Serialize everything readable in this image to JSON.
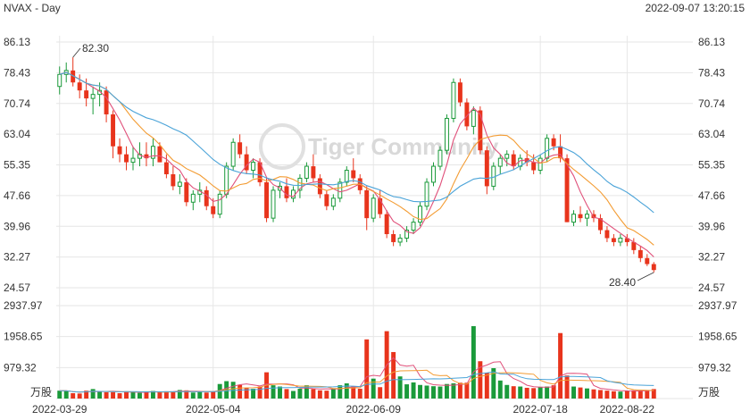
{
  "header": {
    "title": "NVAX - Day",
    "timestamp": "2022-09-07 13:20:15"
  },
  "watermark": "Tiger Community",
  "colors": {
    "up": "#1a9a3a",
    "down": "#e8341c",
    "ma5": "#e0507a",
    "ma10": "#f39c33",
    "ma20": "#4aa3d8",
    "grid": "#e6e6e6"
  },
  "chart_data": [
    {
      "type": "candlestick",
      "title": "",
      "y_ticks": [
        "86.13",
        "78.43",
        "70.74",
        "63.04",
        "55.35",
        "47.66",
        "39.96",
        "32.27",
        "24.57"
      ],
      "ylim": [
        24.57,
        86.13
      ],
      "x_tick_labels": [
        "2022-03-29",
        "2022-05-04",
        "2022-06-09",
        "2022-07-18",
        "2022-08-22"
      ],
      "annotations": {
        "high": "82.30",
        "low": "28.40"
      },
      "series_names": [
        "MA5",
        "MA10",
        "MA20"
      ],
      "candles": [
        [
          75,
          80,
          73,
          78
        ],
        [
          78,
          81,
          76,
          79
        ],
        [
          79,
          82.3,
          75,
          76
        ],
        [
          76,
          78,
          72,
          74
        ],
        [
          74,
          77,
          70,
          72
        ],
        [
          72,
          75,
          68,
          73
        ],
        [
          73,
          76,
          70,
          74
        ],
        [
          74,
          75,
          66,
          68
        ],
        [
          68,
          69,
          57,
          60
        ],
        [
          60,
          62,
          56,
          58
        ],
        [
          58,
          60,
          54,
          56
        ],
        [
          56,
          60,
          54,
          57
        ],
        [
          57,
          61,
          55,
          58
        ],
        [
          58,
          61,
          55,
          57
        ],
        [
          57,
          62,
          55,
          60
        ],
        [
          60,
          61,
          56,
          56
        ],
        [
          56,
          58,
          52,
          53
        ],
        [
          53,
          55,
          49,
          50
        ],
        [
          50,
          53,
          48,
          51
        ],
        [
          51,
          52,
          45,
          46
        ],
        [
          46,
          49,
          44,
          48
        ],
        [
          48,
          51,
          46,
          49
        ],
        [
          49,
          50,
          44,
          45
        ],
        [
          45,
          47,
          42,
          43
        ],
        [
          43,
          49,
          42,
          48
        ],
        [
          48,
          56,
          47,
          55
        ],
        [
          55,
          62,
          54,
          61
        ],
        [
          61,
          63,
          57,
          58
        ],
        [
          58,
          60,
          53,
          54
        ],
        [
          54,
          57,
          52,
          56
        ],
        [
          56,
          57,
          50,
          51
        ],
        [
          51,
          52,
          41,
          42
        ],
        [
          42,
          50,
          41,
          49
        ],
        [
          49,
          51,
          47,
          50
        ],
        [
          50,
          52,
          46,
          47
        ],
        [
          47,
          50,
          46,
          49
        ],
        [
          49,
          53,
          47,
          52
        ],
        [
          52,
          56,
          51,
          55
        ],
        [
          55,
          58,
          51,
          52
        ],
        [
          52,
          53,
          47,
          48
        ],
        [
          48,
          49,
          44,
          45
        ],
        [
          45,
          48,
          44,
          47
        ],
        [
          47,
          52,
          46,
          51
        ],
        [
          51,
          55,
          50,
          54
        ],
        [
          54,
          57,
          51,
          52
        ],
        [
          52,
          53,
          48,
          49
        ],
        [
          49,
          50,
          39,
          42
        ],
        [
          42,
          48,
          41,
          47
        ],
        [
          47,
          49,
          42,
          43
        ],
        [
          43,
          44,
          37,
          38
        ],
        [
          38,
          39,
          35,
          36
        ],
        [
          36,
          38,
          35,
          37
        ],
        [
          37,
          40,
          36,
          39
        ],
        [
          39,
          42,
          38,
          41
        ],
        [
          41,
          46,
          40,
          45
        ],
        [
          45,
          52,
          44,
          51
        ],
        [
          51,
          56,
          50,
          55
        ],
        [
          55,
          60,
          54,
          59
        ],
        [
          59,
          68,
          58,
          67
        ],
        [
          67,
          77,
          66,
          76
        ],
        [
          76,
          77,
          70,
          71
        ],
        [
          71,
          72,
          64,
          65
        ],
        [
          65,
          70,
          63,
          69
        ],
        [
          69,
          70,
          58,
          59
        ],
        [
          59,
          60,
          48,
          50
        ],
        [
          50,
          56,
          49,
          55
        ],
        [
          55,
          58,
          53,
          57
        ],
        [
          57,
          59,
          55,
          58
        ],
        [
          58,
          59,
          54,
          55
        ],
        [
          55,
          58,
          54,
          57
        ],
        [
          57,
          59,
          55,
          56
        ],
        [
          56,
          58,
          53,
          54
        ],
        [
          54,
          58,
          53,
          57
        ],
        [
          57,
          63,
          56,
          62
        ],
        [
          62,
          63,
          59,
          60
        ],
        [
          60,
          63,
          56,
          57
        ],
        [
          57,
          58,
          41,
          41
        ],
        [
          41,
          44,
          40,
          43
        ],
        [
          43,
          45,
          41,
          42
        ],
        [
          42,
          44,
          40,
          43
        ],
        [
          43,
          44,
          41,
          42
        ],
        [
          42,
          43,
          38,
          39
        ],
        [
          39,
          40,
          36,
          37
        ],
        [
          37,
          38,
          35,
          36
        ],
        [
          36,
          38,
          35,
          37
        ],
        [
          37,
          38,
          35,
          36
        ],
        [
          36,
          37,
          33,
          34
        ],
        [
          34,
          35,
          31,
          32
        ],
        [
          32,
          33,
          30,
          30.5
        ],
        [
          30.5,
          31,
          28.4,
          29
        ]
      ]
    },
    {
      "type": "bar",
      "title": "Volume",
      "unit_label": "万股",
      "y_ticks": [
        "2937.97",
        "1958.65",
        "979.32"
      ],
      "ylim": [
        0,
        2937.97
      ],
      "volumes": [
        250,
        240,
        170,
        160,
        250,
        300,
        220,
        200,
        200,
        170,
        230,
        210,
        180,
        200,
        240,
        200,
        230,
        220,
        270,
        260,
        190,
        210,
        190,
        220,
        460,
        550,
        530,
        430,
        340,
        310,
        380,
        830,
        420,
        380,
        300,
        240,
        310,
        420,
        300,
        260,
        250,
        300,
        420,
        480,
        380,
        310,
        1870,
        630,
        360,
        2130,
        1470,
        700,
        450,
        510,
        430,
        410,
        390,
        380,
        460,
        480,
        500,
        500,
        2290,
        1180,
        820,
        960,
        570,
        430,
        390,
        380,
        340,
        330,
        370,
        380,
        420,
        2070,
        730,
        380,
        350,
        320,
        290,
        270,
        250,
        230,
        220,
        240,
        260,
        250,
        270,
        300
      ]
    }
  ]
}
